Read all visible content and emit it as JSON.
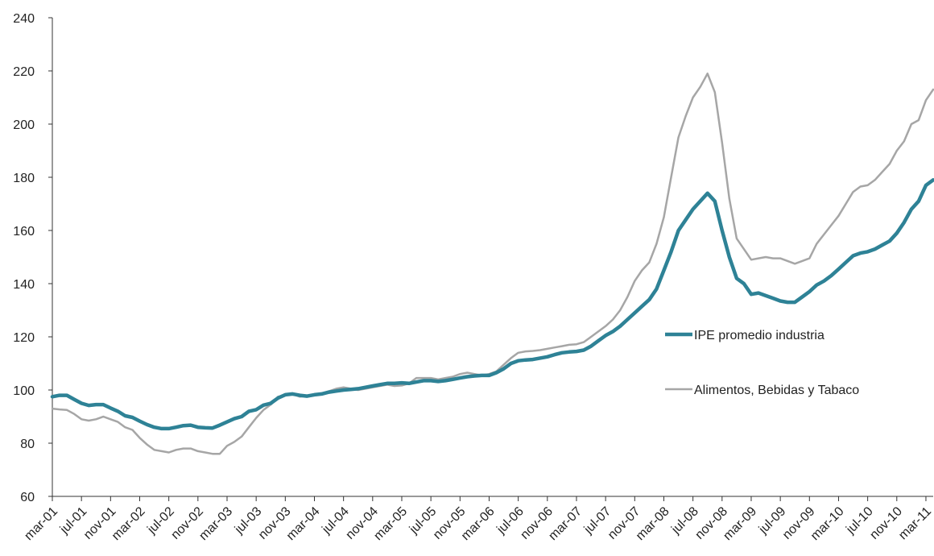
{
  "chart_data": {
    "type": "line",
    "title": "",
    "xlabel": "",
    "ylabel": "",
    "ylim": [
      60,
      240
    ],
    "yticks": [
      60,
      80,
      100,
      120,
      140,
      160,
      180,
      200,
      220,
      240
    ],
    "grid": false,
    "legend_position": "right",
    "x_tick_labels": [
      "mar-01",
      "jul-01",
      "nov-01",
      "mar-02",
      "jul-02",
      "nov-02",
      "mar-03",
      "jul-03",
      "nov-03",
      "mar-04",
      "jul-04",
      "nov-04",
      "mar-05",
      "jul-05",
      "nov-05",
      "mar-06",
      "jul-06",
      "nov-06",
      "mar-07",
      "jul-07",
      "nov-07",
      "mar-08",
      "jul-08",
      "nov-08",
      "mar-09",
      "jul-09",
      "nov-09",
      "mar-10",
      "jul-10",
      "nov-10",
      "mar-11"
    ],
    "series": [
      {
        "name": "IPE promedio industria",
        "color": "#2e8296",
        "values": [
          97.5,
          98,
          98,
          96.5,
          95,
          94.2,
          94.5,
          94.5,
          93.2,
          92,
          90.3,
          89.7,
          88.3,
          87,
          86,
          85.5,
          85.5,
          86,
          86.6,
          86.8,
          86,
          85.8,
          85.7,
          86.8,
          88,
          89.2,
          90,
          92,
          92.6,
          94.3,
          95,
          97,
          98.2,
          98.5,
          98,
          97.7,
          98.2,
          98.5,
          99.2,
          99.6,
          100,
          100.2,
          100.5,
          101,
          101.5,
          102,
          102.5,
          102.5,
          102.7,
          102.5,
          103,
          103.5,
          103.5,
          103.2,
          103.5,
          104,
          104.5,
          105,
          105.3,
          105.5,
          105.5,
          106.5,
          108,
          110,
          111,
          111.3,
          111.5,
          112,
          112.5,
          113.3,
          114,
          114.3,
          114.5,
          115,
          116.5,
          118.5,
          120.5,
          122,
          124,
          126.5,
          129,
          131.5,
          134,
          138,
          145,
          152,
          160,
          164,
          168,
          171,
          174,
          171,
          160,
          150,
          142,
          140,
          136,
          136.5,
          135.5,
          134.5,
          133.5,
          133,
          133,
          135,
          137,
          139.5,
          141,
          143,
          145.5,
          148,
          150.5,
          151.5,
          152,
          153,
          154.5,
          156,
          159,
          163,
          168,
          171,
          177,
          179
        ]
      },
      {
        "name": "Alimentos, Bebidas y Tabaco",
        "color": "#a6a6a6",
        "values": [
          93,
          92.7,
          92.5,
          91,
          89,
          88.5,
          89,
          90,
          89,
          88,
          86,
          85,
          82,
          79.5,
          77.5,
          77,
          76.5,
          77.5,
          78,
          78,
          77,
          76.5,
          76,
          76,
          79,
          80.5,
          82.5,
          86,
          89.5,
          92.5,
          94.5,
          97.5,
          98,
          98.5,
          97.5,
          97.8,
          98,
          98.5,
          99.5,
          100.5,
          101,
          100.5,
          100,
          100.5,
          101,
          101.5,
          102,
          101.5,
          101.7,
          102.5,
          104.5,
          104.5,
          104.5,
          104,
          104.5,
          105,
          106,
          106.5,
          106,
          105.5,
          106,
          107,
          109.5,
          112,
          114,
          114.5,
          114.7,
          115,
          115.5,
          116,
          116.5,
          117,
          117.2,
          118,
          120,
          122,
          124,
          126.5,
          130,
          135,
          141,
          145,
          148,
          155,
          165,
          180,
          195,
          203,
          210,
          214,
          219,
          212,
          193,
          172,
          157,
          153,
          149,
          149.5,
          150,
          149.5,
          149.5,
          148.5,
          147.5,
          148.5,
          149.5,
          155,
          158.5,
          162,
          165.5,
          170,
          174.5,
          176.5,
          177,
          179,
          182,
          185,
          190,
          193.5,
          200,
          201.5,
          209,
          213
        ]
      }
    ]
  }
}
